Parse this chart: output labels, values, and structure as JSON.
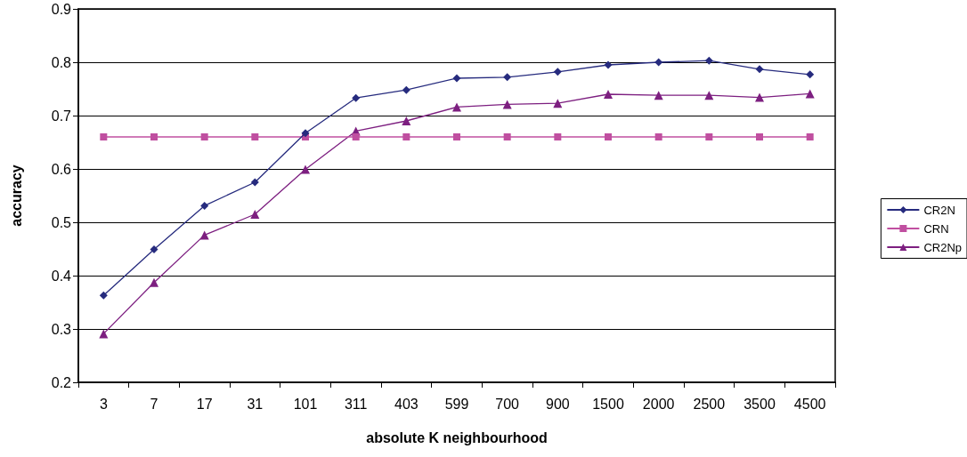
{
  "chart_data": {
    "type": "line",
    "xlabel": "absolute K neighbourhood",
    "ylabel": "accuracy",
    "categories": [
      "3",
      "7",
      "17",
      "31",
      "101",
      "311",
      "403",
      "599",
      "700",
      "900",
      "1500",
      "2000",
      "2500",
      "3500",
      "4500"
    ],
    "series": [
      {
        "name": "CR2N",
        "color": "#262b7e",
        "marker": "diamond",
        "values": [
          0.363,
          0.449,
          0.531,
          0.575,
          0.667,
          0.733,
          0.748,
          0.77,
          0.772,
          0.782,
          0.795,
          0.8,
          0.803,
          0.787,
          0.777
        ]
      },
      {
        "name": "CRN",
        "color": "#c04fa0",
        "marker": "square",
        "values": [
          0.66,
          0.66,
          0.66,
          0.66,
          0.66,
          0.66,
          0.66,
          0.66,
          0.66,
          0.66,
          0.66,
          0.66,
          0.66,
          0.66,
          0.66
        ]
      },
      {
        "name": "CR2Np",
        "color": "#7d1f80",
        "marker": "triangle",
        "values": [
          0.291,
          0.387,
          0.476,
          0.515,
          0.599,
          0.671,
          0.69,
          0.716,
          0.721,
          0.723,
          0.74,
          0.738,
          0.738,
          0.734,
          0.741
        ]
      }
    ],
    "ylim": [
      0.2,
      0.9
    ],
    "yticks": [
      0.2,
      0.3,
      0.4,
      0.5,
      0.6,
      0.7,
      0.8,
      0.9
    ],
    "grid": "y",
    "legend": "right"
  }
}
